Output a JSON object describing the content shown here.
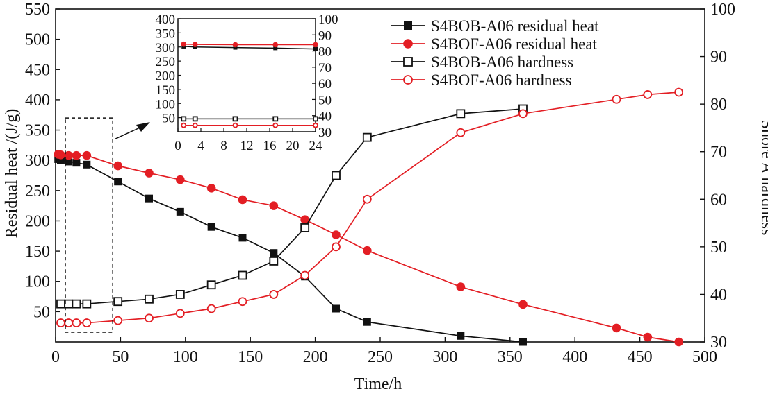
{
  "chart_data": {
    "type": "line",
    "xlabel": "Time/h",
    "ylabel": "Residual heat /(J/g)",
    "y2label": "Shore A hardness",
    "xlim": [
      0,
      500
    ],
    "ylim": [
      0,
      550
    ],
    "y2lim": [
      30,
      100
    ],
    "xticks": [
      "0",
      "50",
      "100",
      "150",
      "200",
      "250",
      "300",
      "350",
      "400",
      "450",
      "500"
    ],
    "yticks": [
      "50",
      "100",
      "150",
      "200",
      "250",
      "300",
      "350",
      "400",
      "450",
      "500",
      "550"
    ],
    "y2ticks": [
      "30",
      "40",
      "50",
      "60",
      "70",
      "80",
      "90",
      "100"
    ],
    "grid": false,
    "legend_position": "top-right",
    "colors": {
      "black": "#111111",
      "red": "#e31e24"
    },
    "series": [
      {
        "name": "S4BOB-A06 residual heat",
        "axis": "left",
        "color": "#111111",
        "marker": "filled-square",
        "x": [
          2,
          4,
          10,
          16,
          24,
          48,
          72,
          96,
          120,
          144,
          168,
          192,
          216,
          240,
          312,
          360
        ],
        "y": [
          302,
          300,
          298,
          296,
          293,
          265,
          237,
          215,
          190,
          172,
          147,
          108,
          55,
          33,
          10,
          0
        ]
      },
      {
        "name": "S4BOF-A06 residual heat",
        "axis": "left",
        "color": "#e31e24",
        "marker": "filled-circle",
        "x": [
          2,
          4,
          10,
          16,
          24,
          48,
          72,
          96,
          120,
          144,
          168,
          192,
          216,
          240,
          312,
          360,
          432,
          456,
          480
        ],
        "y": [
          310,
          309,
          308,
          308,
          308,
          291,
          279,
          268,
          254,
          235,
          225,
          202,
          177,
          151,
          91,
          62,
          23,
          8,
          0
        ]
      },
      {
        "name": "S4BOB-A06 hardness",
        "axis": "right",
        "color": "#111111",
        "marker": "open-square",
        "x": [
          4,
          10,
          16,
          24,
          48,
          72,
          96,
          120,
          144,
          168,
          192,
          216,
          240,
          312,
          360
        ],
        "y": [
          38,
          38,
          38,
          38,
          38.5,
          39,
          40,
          42,
          44,
          47,
          54,
          65,
          73,
          78,
          79
        ]
      },
      {
        "name": "S4BOF-A06 hardness",
        "axis": "right",
        "color": "#e31e24",
        "marker": "open-circle",
        "x": [
          4,
          10,
          16,
          24,
          48,
          72,
          96,
          120,
          144,
          168,
          192,
          216,
          240,
          312,
          360,
          432,
          456,
          480
        ],
        "y": [
          34,
          34,
          34,
          34,
          34.5,
          35,
          36,
          37,
          38.5,
          40,
          44,
          50,
          60,
          74,
          78,
          81,
          82,
          82.5
        ]
      }
    ],
    "inset": {
      "xlim": [
        0,
        24
      ],
      "ylim": [
        0,
        400
      ],
      "y2lim": [
        30,
        100
      ],
      "xticks": [
        "0",
        "4",
        "8",
        "12",
        "16",
        "20",
        "24"
      ],
      "yticks": [
        "50",
        "100",
        "150",
        "200",
        "250",
        "300",
        "350",
        "400"
      ],
      "y2ticks": [
        "30",
        "40",
        "50",
        "60",
        "70",
        "80",
        "90",
        "100"
      ],
      "series": [
        {
          "name": "S4BOB-A06 residual heat",
          "axis": "left",
          "color": "#111111",
          "marker": "filled-square",
          "x": [
            1,
            3,
            10,
            17,
            24
          ],
          "y": [
            302,
            300,
            298,
            296,
            293
          ]
        },
        {
          "name": "S4BOF-A06 residual heat",
          "axis": "left",
          "color": "#e31e24",
          "marker": "filled-circle",
          "x": [
            1,
            3,
            10,
            17,
            24
          ],
          "y": [
            310,
            309,
            308,
            308,
            308
          ]
        },
        {
          "name": "S4BOB-A06 hardness",
          "axis": "right",
          "color": "#111111",
          "marker": "open-square",
          "x": [
            1,
            3,
            10,
            17,
            24
          ],
          "y": [
            38,
            38,
            38,
            38,
            38
          ]
        },
        {
          "name": "S4BOF-A06 hardness",
          "axis": "right",
          "color": "#e31e24",
          "marker": "open-circle",
          "x": [
            1,
            3,
            10,
            17,
            24
          ],
          "y": [
            34,
            34,
            34,
            34,
            34
          ]
        }
      ]
    },
    "zoom_region": {
      "x": [
        0,
        44
      ],
      "y": [
        0,
        370
      ]
    }
  }
}
